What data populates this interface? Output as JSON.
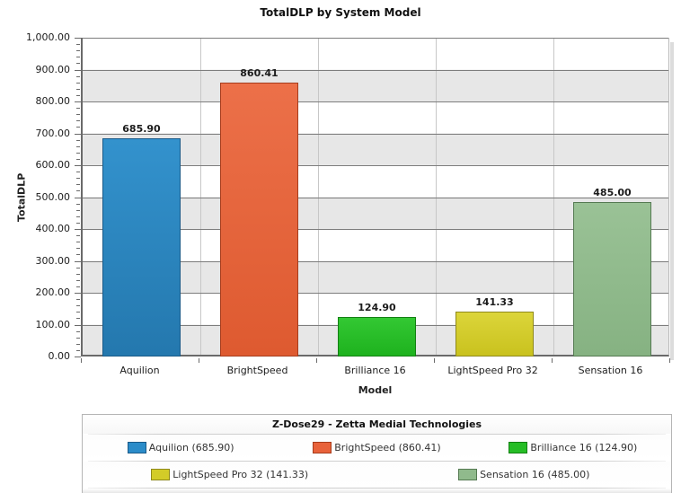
{
  "chart_data": {
    "type": "bar",
    "title": "TotalDLP by System Model",
    "xlabel": "Model",
    "ylabel": "TotalDLP",
    "ylim": [
      0,
      1000
    ],
    "ytick_interval": 100,
    "minor_tick_interval": 20,
    "grid": true,
    "plot_band_colors": [
      "#ffffff",
      "#e7e7e7"
    ],
    "legend_position": "bottom",
    "ytick_labels": [
      "0.00",
      "100.00",
      "200.00",
      "300.00",
      "400.00",
      "500.00",
      "600.00",
      "700.00",
      "800.00",
      "900.00",
      "1,000.00"
    ],
    "categories": [
      "Aquilion",
      "BrightSpeed",
      "Brilliance 16",
      "LightSpeed Pro 32",
      "Sensation 16"
    ],
    "values": [
      685.9,
      860.41,
      124.9,
      141.33,
      485.0
    ],
    "value_labels": [
      "685.90",
      "860.41",
      "124.90",
      "141.33",
      "485.00"
    ],
    "bar_styles": [
      {
        "fill_top": "#3392cd",
        "fill_bottom": "#2478ae",
        "border": "#1a5a88"
      },
      {
        "fill_top": "#ec7049",
        "fill_bottom": "#de5a30",
        "border": "#a63c1c"
      },
      {
        "fill_top": "#33c833",
        "fill_bottom": "#1eb21e",
        "border": "#128012"
      },
      {
        "fill_top": "#dcd53a",
        "fill_bottom": "#c9c21e",
        "border": "#8f891c"
      },
      {
        "fill_top": "#9ac296",
        "fill_bottom": "#86b282",
        "border": "#557a52"
      }
    ]
  },
  "legend": {
    "title": "Z-Dose29 - Zetta Medial Technologies",
    "rows": [
      [
        {
          "label": "Aquilion (685.90)",
          "color": "#2b8cc9",
          "border": "#1a5a88"
        },
        {
          "label": "BrightSpeed (860.41)",
          "color": "#e8623a",
          "border": "#a63c1c"
        },
        {
          "label": "Brilliance 16 (124.90)",
          "color": "#26bd26",
          "border": "#128012"
        }
      ],
      [
        {
          "label": "LightSpeed Pro 32 (141.33)",
          "color": "#d3cc28",
          "border": "#8f891c"
        },
        {
          "label": "Sensation 16 (485.00)",
          "color": "#90ba8c",
          "border": "#557a52"
        }
      ]
    ]
  }
}
